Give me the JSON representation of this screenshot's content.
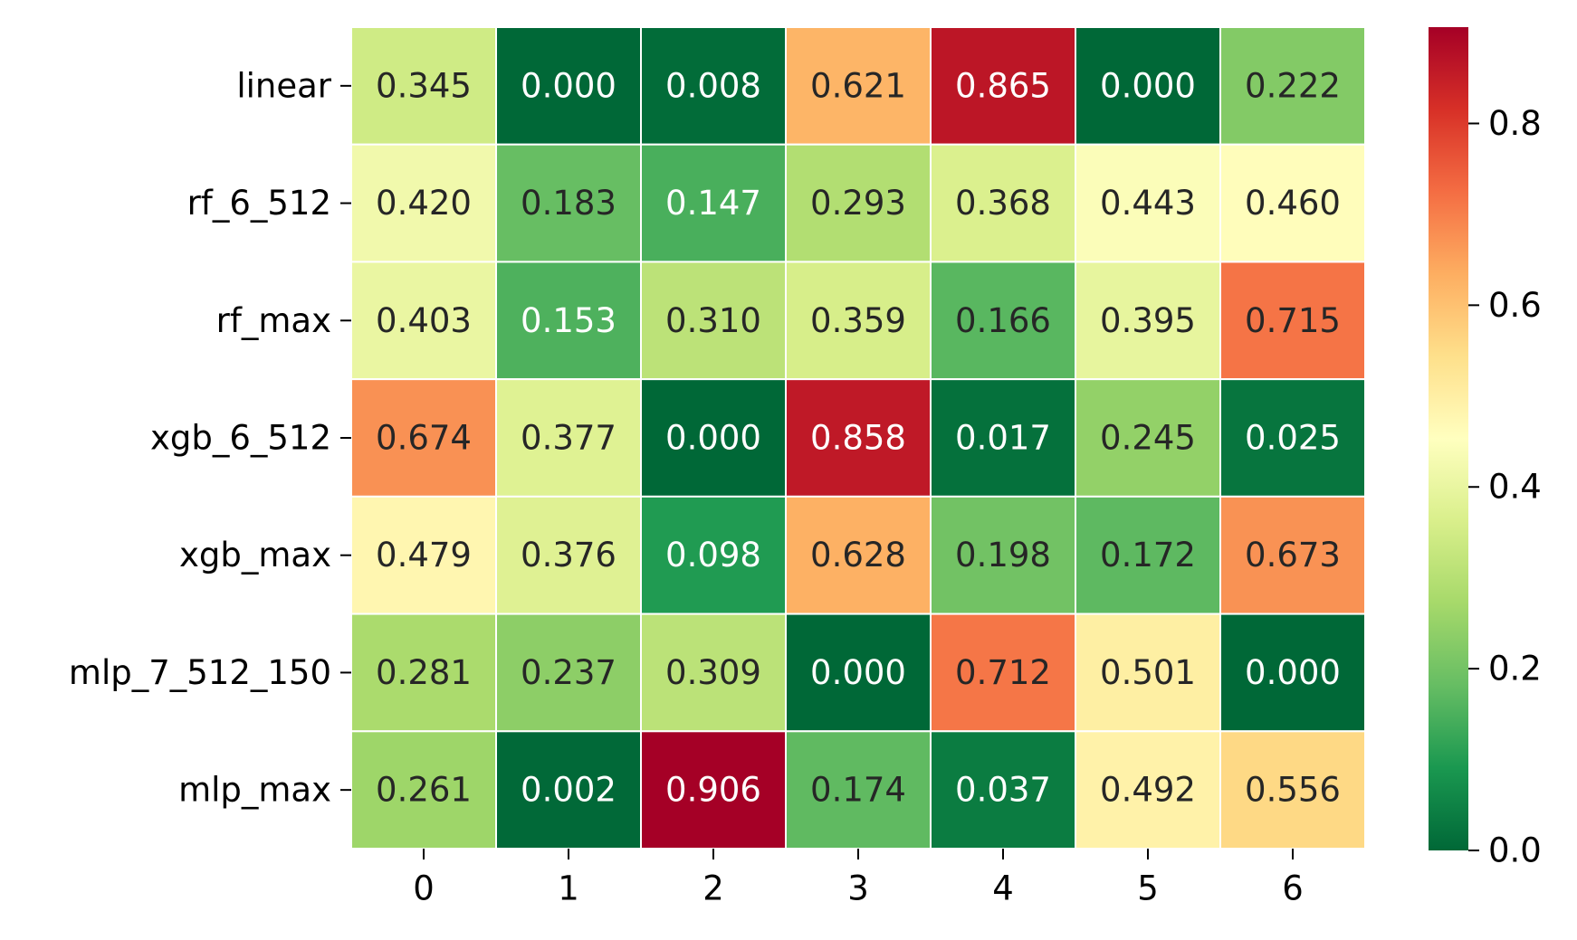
{
  "chart_data": {
    "type": "heatmap",
    "title": "",
    "xlabel": "",
    "ylabel": "",
    "row_labels": [
      "linear",
      "rf_6_512",
      "rf_max",
      "xgb_6_512",
      "xgb_max",
      "mlp_7_512_150",
      "mlp_max"
    ],
    "col_labels": [
      "0",
      "1",
      "2",
      "3",
      "4",
      "5",
      "6"
    ],
    "values": [
      [
        0.345,
        0.0,
        0.008,
        0.621,
        0.865,
        0.0,
        0.222
      ],
      [
        0.42,
        0.183,
        0.147,
        0.293,
        0.368,
        0.443,
        0.46
      ],
      [
        0.403,
        0.153,
        0.31,
        0.359,
        0.166,
        0.395,
        0.715
      ],
      [
        0.674,
        0.377,
        0.0,
        0.858,
        0.017,
        0.245,
        0.025
      ],
      [
        0.479,
        0.376,
        0.098,
        0.628,
        0.198,
        0.172,
        0.673
      ],
      [
        0.281,
        0.237,
        0.309,
        0.0,
        0.712,
        0.501,
        0.0
      ],
      [
        0.261,
        0.002,
        0.906,
        0.174,
        0.037,
        0.492,
        0.556
      ]
    ],
    "value_format": "0.000",
    "colormap": "RdYlGn_r",
    "vmin": 0.0,
    "vmax": 0.906,
    "colorbar_ticks": [
      "0.0",
      "0.2",
      "0.4",
      "0.6",
      "0.8"
    ],
    "colorbar_tick_values": [
      0.0,
      0.2,
      0.4,
      0.6,
      0.8
    ],
    "colors": {
      "cell_border": "#ffffff",
      "label_dark": "#262626",
      "label_light": "#ffffff",
      "axis_text": "#000000"
    }
  }
}
